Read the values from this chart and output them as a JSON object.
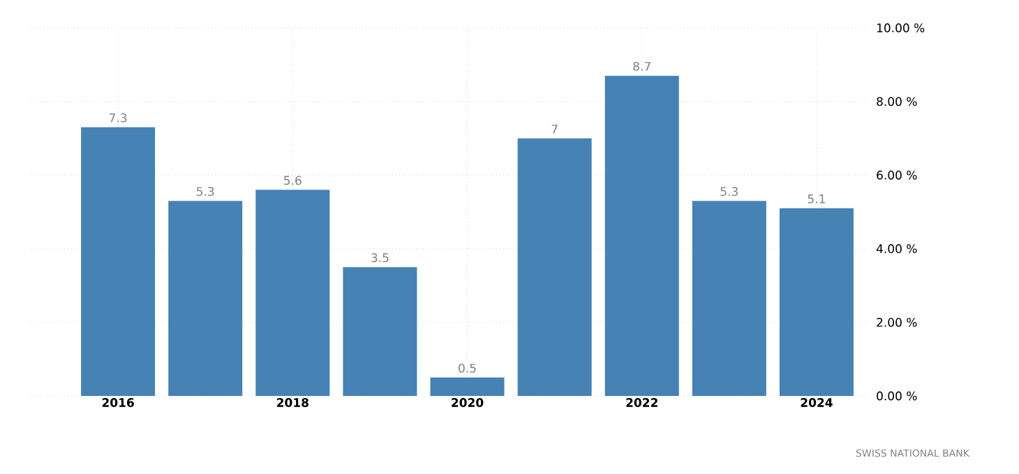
{
  "chart_data": {
    "type": "bar",
    "categories": [
      "2016",
      null,
      "2018",
      null,
      "2020",
      null,
      "2022",
      null,
      "2024"
    ],
    "values": [
      7.3,
      5.3,
      5.6,
      3.5,
      0.5,
      7,
      8.7,
      5.3,
      5.1
    ],
    "color": "#4682b4",
    "ylim": [
      0,
      10
    ],
    "yticks": [
      {
        "value": 0,
        "label": "0.00 %"
      },
      {
        "value": 2,
        "label": "2.00 %"
      },
      {
        "value": 4,
        "label": "4.00 %"
      },
      {
        "value": 6,
        "label": "6.00 %"
      },
      {
        "value": 8,
        "label": "8.00 %"
      },
      {
        "value": 10,
        "label": "10.00 %"
      }
    ],
    "grid": true,
    "data_labels": true,
    "annotations": [
      "SWISS NATIONAL BANK"
    ]
  }
}
